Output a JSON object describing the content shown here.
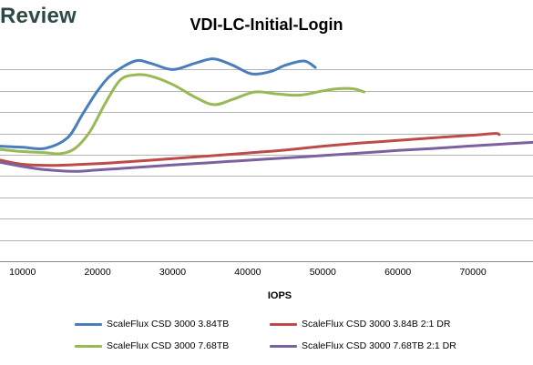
{
  "brand": {
    "text": "Review"
  },
  "chart_data": {
    "type": "line",
    "title": "VDI-LC-Initial-Login",
    "xlabel": "IOPS",
    "ylabel": "",
    "xlim": [
      7000,
      78000
    ],
    "ylim": [
      0,
      10
    ],
    "grid": true,
    "legend_position": "bottom",
    "x_ticks": [
      10000,
      20000,
      30000,
      40000,
      50000,
      60000,
      70000
    ],
    "x_tick_labels": [
      "10000",
      "20000",
      "30000",
      "40000",
      "50000",
      "60000",
      "70000"
    ],
    "y_gridlines": [
      0,
      1,
      2,
      3,
      4,
      5,
      6,
      7,
      8,
      9
    ],
    "series": [
      {
        "name": "ScaleFlux CSD 3000 3.84TB",
        "color": "#4a7ebb",
        "x": [
          7000,
          10000,
          13000,
          16000,
          18000,
          20000,
          22000,
          25000,
          27000,
          30000,
          33000,
          35500,
          38000,
          40500,
          43000,
          45000,
          47500,
          49000
        ],
        "y": [
          5.4,
          5.35,
          5.3,
          5.8,
          6.9,
          8.0,
          8.8,
          9.4,
          9.3,
          9.0,
          9.3,
          9.5,
          9.2,
          8.8,
          8.9,
          9.2,
          9.4,
          9.1
        ]
      },
      {
        "name": "ScaleFlux CSD 3000 3.84B 2:1 DR",
        "color": "#be4b48",
        "x": [
          7000,
          10000,
          14000,
          18000,
          22000,
          26000,
          30000,
          35000,
          40000,
          45000,
          50000,
          55000,
          60000,
          65000,
          70000,
          73000,
          73500
        ],
        "y": [
          4.75,
          4.55,
          4.5,
          4.55,
          4.62,
          4.72,
          4.82,
          4.95,
          5.08,
          5.22,
          5.4,
          5.55,
          5.67,
          5.8,
          5.92,
          6.0,
          5.95
        ]
      },
      {
        "name": "ScaleFlux CSD 3000 7.68TB",
        "color": "#98b954",
        "x": [
          7000,
          10000,
          13000,
          15000,
          17000,
          19000,
          21000,
          23000,
          25000,
          27000,
          30000,
          33000,
          35500,
          38000,
          41000,
          44000,
          47000,
          50000,
          52000,
          54000,
          55500
        ],
        "y": [
          5.25,
          5.15,
          5.1,
          5.05,
          5.3,
          6.1,
          7.4,
          8.5,
          8.75,
          8.7,
          8.3,
          7.7,
          7.35,
          7.6,
          7.95,
          7.85,
          7.8,
          8.0,
          8.1,
          8.1,
          7.95
        ]
      },
      {
        "name": "ScaleFlux CSD 3000 7.68TB 2:1 DR",
        "color": "#7d60a0",
        "x": [
          7000,
          10000,
          13000,
          17000,
          20000,
          25000,
          30000,
          35000,
          40000,
          45000,
          50000,
          55000,
          60000,
          65000,
          70000,
          75000,
          78000
        ],
        "y": [
          4.65,
          4.45,
          4.3,
          4.22,
          4.28,
          4.4,
          4.52,
          4.63,
          4.74,
          4.85,
          4.96,
          5.08,
          5.2,
          5.3,
          5.42,
          5.52,
          5.58
        ]
      }
    ]
  }
}
